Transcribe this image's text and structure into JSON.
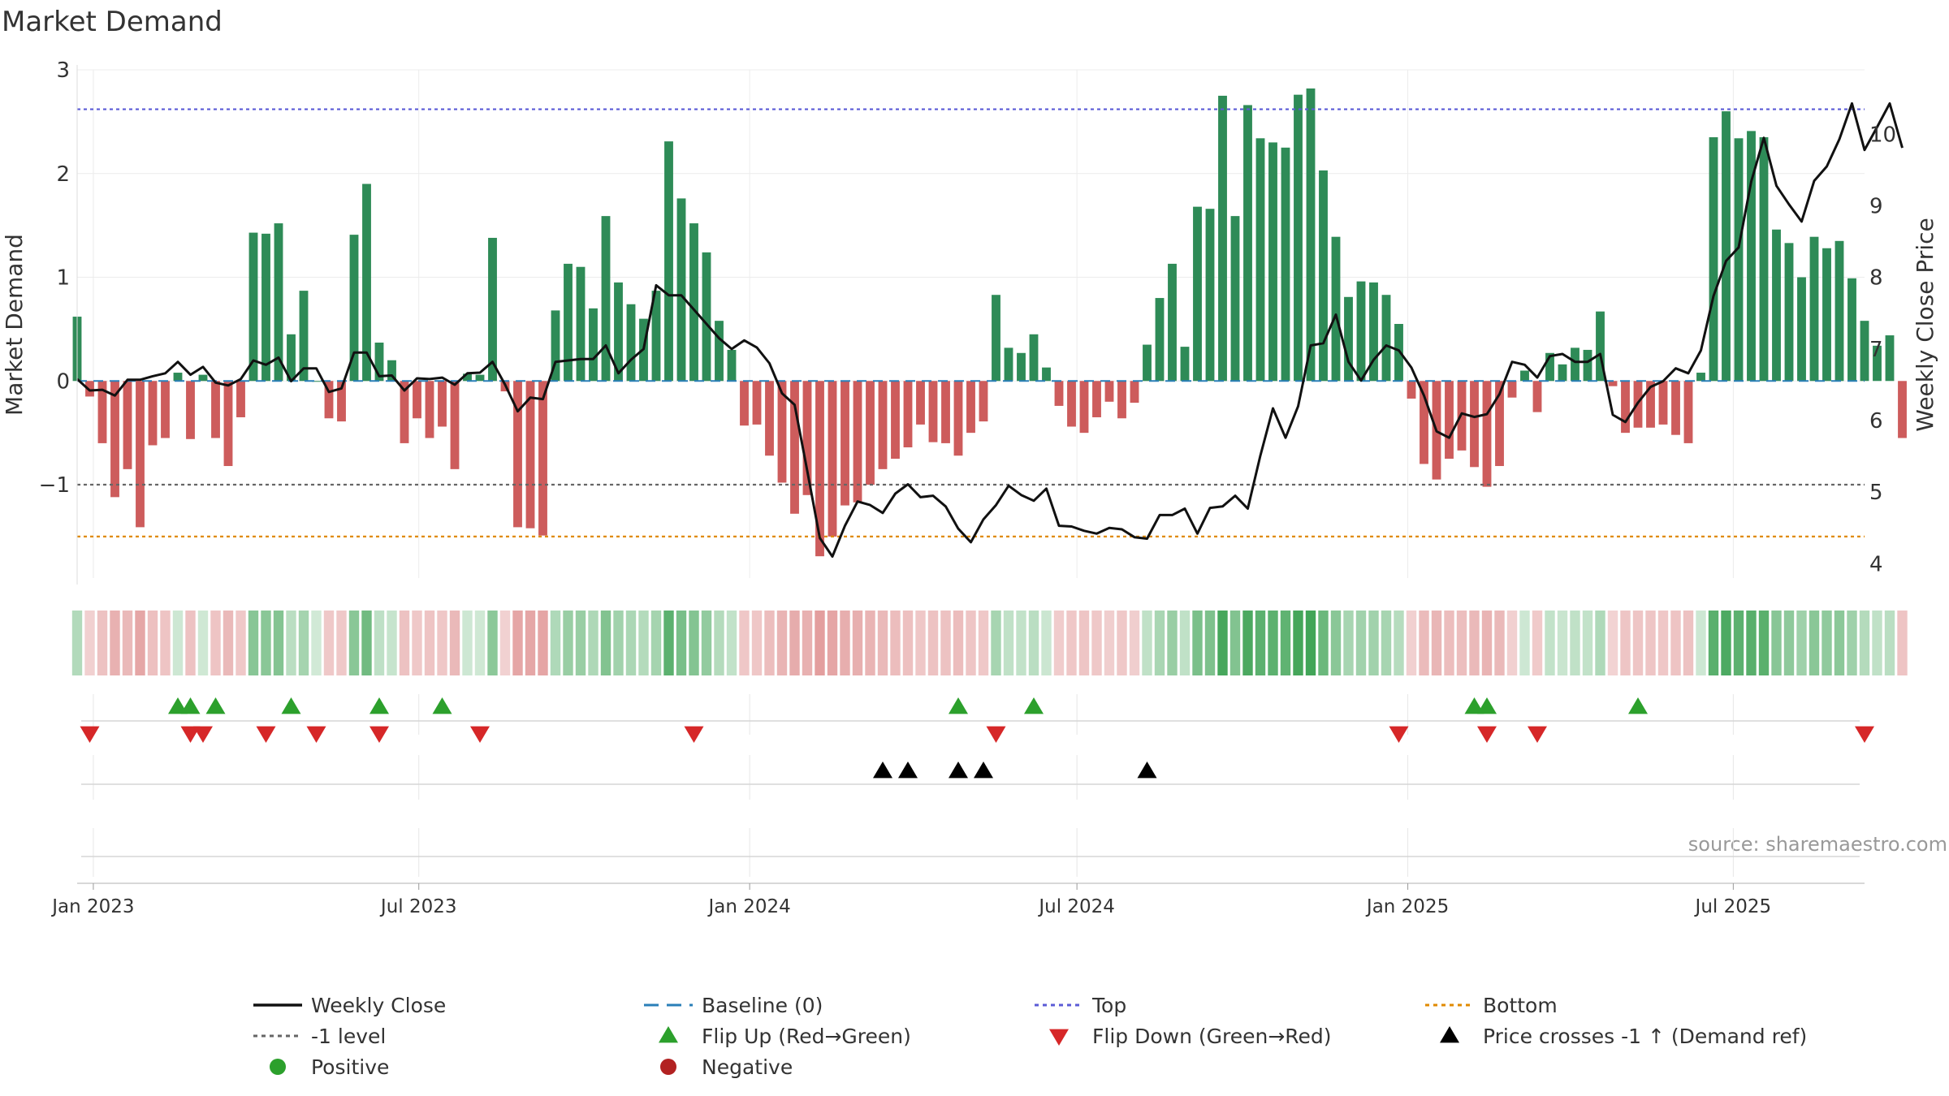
{
  "chart_data": {
    "type": "bar+line",
    "title": "Market Demand",
    "ylabel_left": "Market Demand",
    "ylabel_right": "Weekly Close Price",
    "ylim_left": [
      -1.9,
      3.0
    ],
    "ylim_right": [
      3.8,
      10.9
    ],
    "left_ticks": [
      3,
      2,
      1,
      0,
      -1
    ],
    "left_tick_labels": [
      "3",
      "2",
      "1",
      "0",
      "−1"
    ],
    "right_ticks": [
      10,
      9,
      8,
      7,
      6,
      5,
      4
    ],
    "right_tick_labels": [
      "10",
      "9",
      "8",
      "7",
      "6",
      "5",
      "4"
    ],
    "x_start": "2022-12-23",
    "x_end": "2025-09-12",
    "x_ticks": [
      {
        "label": "Jan 2023",
        "date": "2023-01-01"
      },
      {
        "label": "Jul 2023",
        "date": "2023-07-01"
      },
      {
        "label": "Jan 2024",
        "date": "2024-01-01"
      },
      {
        "label": "Jul 2024",
        "date": "2024-07-01"
      },
      {
        "label": "Jan 2025",
        "date": "2025-01-01"
      },
      {
        "label": "Jul 2025",
        "date": "2025-07-01"
      }
    ],
    "reference_lines": [
      {
        "name": "Top",
        "value": 2.62,
        "color": "#5b5bd6"
      },
      {
        "name": "-1 level",
        "value": -1.0,
        "color": "#666666"
      },
      {
        "name": "Bottom",
        "value": -1.5,
        "color": "#e08a00"
      },
      {
        "name": "Baseline (0)",
        "value": 0,
        "color": "#2a7fb8"
      }
    ],
    "series": [
      {
        "name": "Market Demand",
        "kind": "bar",
        "start_week": "2022-12-23",
        "values": [
          0.62,
          -0.15,
          -0.6,
          -1.12,
          -0.85,
          -1.41,
          -0.62,
          -0.55,
          0.08,
          -0.56,
          0.06,
          -0.55,
          -0.82,
          -0.35,
          1.43,
          1.42,
          1.52,
          0.45,
          0.87,
          0.0,
          -0.36,
          -0.39,
          1.41,
          1.9,
          0.37,
          0.2,
          -0.6,
          -0.36,
          -0.55,
          -0.44,
          -0.85,
          0.07,
          0.06,
          1.38,
          -0.1,
          -1.41,
          -1.42,
          -1.49,
          0.68,
          1.13,
          1.1,
          0.7,
          1.59,
          0.95,
          0.74,
          0.6,
          0.87,
          2.31,
          1.76,
          1.52,
          1.24,
          0.58,
          0.3,
          -0.43,
          -0.42,
          -0.72,
          -0.98,
          -1.28,
          -1.1,
          -1.69,
          -1.5,
          -1.2,
          -1.17,
          -1.0,
          -0.85,
          -0.75,
          -0.64,
          -0.42,
          -0.59,
          -0.6,
          -0.72,
          -0.5,
          -0.39,
          0.83,
          0.32,
          0.27,
          0.45,
          0.13,
          -0.24,
          -0.44,
          -0.5,
          -0.35,
          -0.2,
          -0.36,
          -0.21,
          0.35,
          0.8,
          1.13,
          0.33,
          1.68,
          1.66,
          2.75,
          1.59,
          2.66,
          2.34,
          2.3,
          2.25,
          2.76,
          2.82,
          2.03,
          1.39,
          0.81,
          0.96,
          0.95,
          0.83,
          0.55,
          -0.17,
          -0.8,
          -0.95,
          -0.75,
          -0.67,
          -0.83,
          -1.02,
          -0.82,
          -0.16,
          0.1,
          -0.3,
          0.27,
          0.16,
          0.32,
          0.3,
          0.67,
          -0.05,
          -0.5,
          -0.45,
          -0.45,
          -0.42,
          -0.52,
          -0.6,
          0.08,
          2.35,
          2.6,
          2.34,
          2.41,
          2.35,
          1.46,
          1.33,
          1.0,
          1.39,
          1.28,
          1.35,
          0.99,
          0.58,
          0.34,
          0.44,
          -0.55
        ]
      },
      {
        "name": "Weekly Close",
        "kind": "line",
        "start_week": "2022-12-23",
        "values": [
          6.58,
          6.42,
          6.43,
          6.35,
          6.57,
          6.57,
          6.62,
          6.66,
          6.82,
          6.64,
          6.75,
          6.53,
          6.49,
          6.58,
          6.84,
          6.78,
          6.88,
          6.55,
          6.73,
          6.73,
          6.4,
          6.45,
          6.95,
          6.95,
          6.62,
          6.63,
          6.42,
          6.59,
          6.58,
          6.6,
          6.5,
          6.66,
          6.67,
          6.82,
          6.5,
          6.13,
          6.32,
          6.3,
          6.82,
          6.84,
          6.86,
          6.86,
          7.05,
          6.66,
          6.85,
          7.0,
          7.89,
          7.75,
          7.75,
          7.55,
          7.35,
          7.15,
          7.0,
          7.12,
          7.02,
          6.8,
          6.38,
          6.22,
          5.3,
          4.36,
          4.1,
          4.53,
          4.87,
          4.82,
          4.71,
          4.98,
          5.11,
          4.93,
          4.95,
          4.8,
          4.49,
          4.3,
          4.62,
          4.82,
          5.09,
          4.96,
          4.88,
          5.05,
          4.53,
          4.52,
          4.46,
          4.42,
          4.5,
          4.48,
          4.37,
          4.35,
          4.68,
          4.68,
          4.77,
          4.42,
          4.78,
          4.8,
          4.95,
          4.77,
          5.51,
          6.17,
          5.76,
          6.2,
          7.05,
          7.08,
          7.48,
          6.82,
          6.56,
          6.85,
          7.05,
          6.98,
          6.74,
          6.35,
          5.85,
          5.76,
          6.1,
          6.05,
          6.09,
          6.37,
          6.82,
          6.78,
          6.6,
          6.9,
          6.93,
          6.82,
          6.82,
          6.93,
          6.08,
          5.98,
          6.25,
          6.47,
          6.55,
          6.73,
          6.66,
          6.98,
          7.74,
          8.23,
          8.42,
          9.34,
          9.95,
          9.28,
          9.02,
          8.78,
          9.35,
          9.55,
          9.93,
          10.43,
          9.78,
          10.1,
          10.43,
          9.81
        ]
      }
    ],
    "demand_strip_color_key": "green = positive demand, red = negative demand; intensity = magnitude",
    "flip_up_weeks": [
      "2023-02-17",
      "2023-02-24",
      "2023-03-10",
      "2023-04-21",
      "2023-06-09",
      "2023-07-14",
      "2024-04-26",
      "2024-06-07",
      "2025-02-07",
      "2025-02-14",
      "2025-05-09"
    ],
    "flip_down_weeks": [
      "2022-12-30",
      "2023-02-24",
      "2023-03-03",
      "2023-04-07",
      "2023-05-05",
      "2023-06-09",
      "2023-08-04",
      "2023-12-01",
      "2024-05-17",
      "2024-12-27",
      "2025-02-14",
      "2025-03-14",
      "2025-09-12"
    ],
    "price_cross_weeks": [
      "2024-03-15",
      "2024-03-29",
      "2024-04-26",
      "2024-05-10",
      "2024-08-09"
    ],
    "source_note": "source: sharemaestro.com",
    "legend": [
      {
        "label": "Weekly Close",
        "symbol": "line",
        "color": "#111111"
      },
      {
        "label": "Baseline (0)",
        "symbol": "dash",
        "color": "#2a7fb8"
      },
      {
        "label": "Top",
        "symbol": "dot",
        "color": "#5b5bd6"
      },
      {
        "label": "Bottom",
        "symbol": "dot",
        "color": "#e08a00"
      },
      {
        "label": "-1 level",
        "symbol": "dot",
        "color": "#666666"
      },
      {
        "label": "Flip Up (Red→Green)",
        "symbol": "triangle-up",
        "color": "#2ca02c"
      },
      {
        "label": "Flip Down (Green→Red)",
        "symbol": "triangle-down",
        "color": "#d62728"
      },
      {
        "label": "Price crosses -1 ↑ (Demand ref)",
        "symbol": "triangle-up",
        "color": "#000000"
      },
      {
        "label": "Positive",
        "symbol": "circle",
        "color": "#2ca02c"
      },
      {
        "label": "Negative",
        "symbol": "circle",
        "color": "#b22222"
      }
    ],
    "colors": {
      "positive_bar": "#2e8b57",
      "negative_bar": "#cd5c5c",
      "price_line": "#111111"
    }
  }
}
